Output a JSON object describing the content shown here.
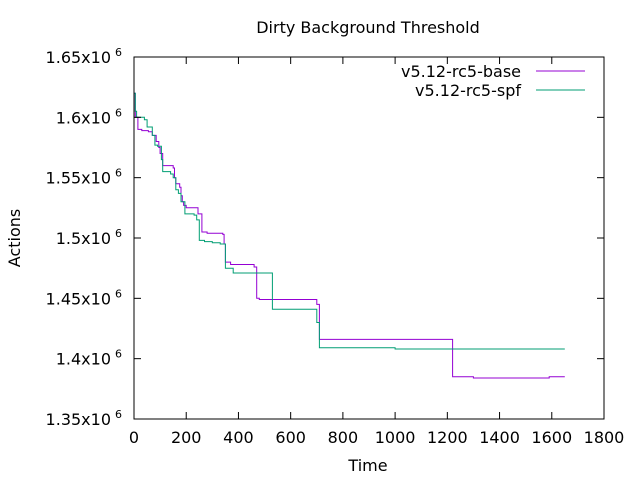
{
  "chart_data": {
    "type": "line",
    "title": "Dirty Background Threshold",
    "xlabel": "Time",
    "ylabel": "Actions",
    "xlim": [
      0,
      1800
    ],
    "ylim": [
      1350000,
      1650000
    ],
    "x_ticks": [
      {
        "value": 0,
        "label": "0"
      },
      {
        "value": 200,
        "label": "200"
      },
      {
        "value": 400,
        "label": "400"
      },
      {
        "value": 600,
        "label": "600"
      },
      {
        "value": 800,
        "label": "800"
      },
      {
        "value": 1000,
        "label": "1000"
      },
      {
        "value": 1200,
        "label": "1200"
      },
      {
        "value": 1400,
        "label": "1400"
      },
      {
        "value": 1600,
        "label": "1600"
      },
      {
        "value": 1800,
        "label": "1800"
      }
    ],
    "y_ticks": [
      {
        "value": 1350000,
        "mantissa": "1.35x10",
        "exponent": "6"
      },
      {
        "value": 1400000,
        "mantissa": "1.4x10",
        "exponent": "6"
      },
      {
        "value": 1450000,
        "mantissa": "1.45x10",
        "exponent": "6"
      },
      {
        "value": 1500000,
        "mantissa": "1.5x10",
        "exponent": "6"
      },
      {
        "value": 1550000,
        "mantissa": "1.55x10",
        "exponent": "6"
      },
      {
        "value": 1600000,
        "mantissa": "1.6x10",
        "exponent": "6"
      },
      {
        "value": 1650000,
        "mantissa": "1.65x10",
        "exponent": "6"
      }
    ],
    "grid": false,
    "legend_position": "top-right",
    "series": [
      {
        "name": "v5.12-rc5-base",
        "color": "#9400d3",
        "x": [
          0,
          5,
          15,
          30,
          55,
          70,
          85,
          95,
          100,
          110,
          150,
          155,
          160,
          175,
          180,
          185,
          190,
          200,
          230,
          245,
          260,
          280,
          300,
          340,
          345,
          350,
          370,
          400,
          460,
          470,
          480,
          530,
          690,
          700,
          710,
          760,
          1000,
          1150,
          1210,
          1220,
          1260,
          1300,
          1400,
          1580,
          1590,
          1650
        ],
        "y": [
          1620000,
          1600000,
          1590000,
          1589000,
          1588000,
          1585000,
          1580000,
          1575000,
          1570000,
          1560000,
          1558000,
          1550000,
          1545000,
          1542000,
          1535000,
          1530000,
          1527000,
          1525000,
          1525000,
          1520000,
          1505000,
          1504000,
          1504000,
          1503000,
          1495000,
          1480000,
          1478000,
          1478000,
          1476000,
          1450000,
          1449000,
          1449000,
          1449000,
          1445000,
          1416000,
          1416000,
          1416000,
          1416000,
          1416000,
          1385000,
          1385000,
          1384000,
          1384000,
          1384000,
          1385000,
          1385000
        ]
      },
      {
        "name": "v5.12-rc5-spf",
        "color": "#009e73",
        "x": [
          0,
          5,
          10,
          40,
          50,
          70,
          80,
          90,
          105,
          110,
          140,
          150,
          160,
          170,
          180,
          195,
          200,
          230,
          240,
          250,
          270,
          300,
          330,
          350,
          380,
          400,
          450,
          510,
          530,
          620,
          690,
          700,
          710,
          800,
          950,
          1000,
          1100,
          1200,
          1650
        ],
        "y": [
          1620000,
          1605000,
          1600000,
          1598000,
          1592000,
          1585000,
          1577000,
          1576000,
          1565000,
          1555000,
          1553000,
          1550000,
          1540000,
          1537000,
          1530000,
          1520000,
          1520000,
          1519000,
          1515000,
          1498000,
          1497000,
          1496000,
          1495000,
          1475000,
          1471000,
          1471000,
          1471000,
          1471000,
          1441000,
          1441000,
          1441000,
          1430000,
          1409000,
          1409000,
          1409000,
          1408000,
          1408000,
          1408000,
          1408000
        ]
      }
    ]
  }
}
